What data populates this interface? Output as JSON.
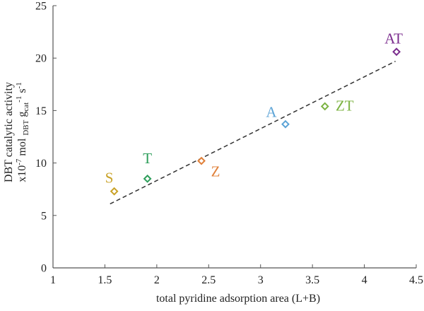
{
  "chart_data": {
    "type": "scatter",
    "title": "",
    "xlabel": "total pyridine adsorption area (L+B)",
    "ylabel": {
      "line1": "DBT catalytic activity",
      "line2_main": "x10",
      "line2_exp": "-7",
      "line2_mol": " mol ",
      "line2_sub_dbt": "DBT",
      "line2_g": " g",
      "line2_sub_cat": "cat",
      "line2_exp_g": "-1",
      "line2_s": " s",
      "line2_exp_s": "-1"
    },
    "xlim": [
      1,
      4.5
    ],
    "ylim": [
      0,
      25
    ],
    "xticks": [
      1,
      1.5,
      2,
      2.5,
      3,
      3.5,
      4,
      4.5
    ],
    "xtick_labels": [
      "1",
      "1.5",
      "2",
      "2.5",
      "3",
      "3.5",
      "4",
      "4.5"
    ],
    "yticks": [
      0,
      5,
      10,
      15,
      20,
      25
    ],
    "ytick_labels": [
      "0",
      "5",
      "10",
      "15",
      "20",
      "25"
    ],
    "grid": false,
    "legend": "none",
    "points": [
      {
        "label": "S",
        "x": 1.59,
        "y": 7.3,
        "color": "#c9a227"
      },
      {
        "label": "T",
        "x": 1.91,
        "y": 8.5,
        "color": "#2e9e5b"
      },
      {
        "label": "Z",
        "x": 2.43,
        "y": 10.2,
        "color": "#e0803a"
      },
      {
        "label": "A",
        "x": 3.24,
        "y": 13.7,
        "color": "#5ba3d6"
      },
      {
        "label": "ZT",
        "x": 3.62,
        "y": 15.4,
        "color": "#7cb342"
      },
      {
        "label": "AT",
        "x": 4.31,
        "y": 20.6,
        "color": "#7b2d8e"
      }
    ],
    "trendline": {
      "style": "dashed",
      "color": "#333333",
      "x": [
        1.55,
        4.3
      ],
      "y": [
        6.1,
        19.7
      ]
    }
  }
}
